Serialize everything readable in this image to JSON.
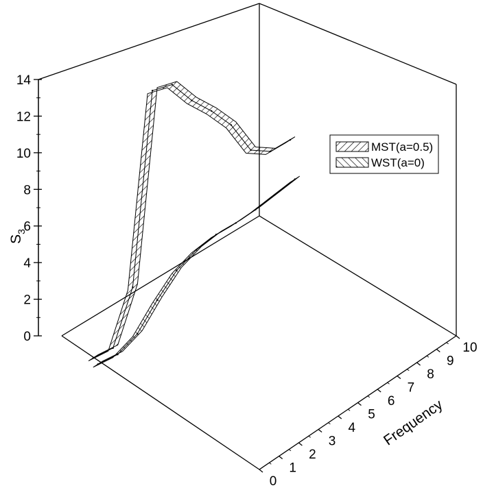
{
  "chart_data": {
    "type": "area",
    "title": "",
    "zlabel": "S",
    "zlabel_subscript": "3",
    "xlabel": "Frequency",
    "z_ticks": [
      "0",
      "2",
      "4",
      "6",
      "8",
      "10",
      "12",
      "14"
    ],
    "x_ticks": [
      "0",
      "1",
      "2",
      "3",
      "4",
      "5",
      "6",
      "7",
      "8",
      "9",
      "10"
    ],
    "zlim": [
      0,
      14
    ],
    "xlim": [
      0,
      10
    ],
    "legend_position": "top-right",
    "series": [
      {
        "name": "MST(a=0.5)",
        "hatch": "forward",
        "x": [
          0,
          1,
          2,
          3,
          4,
          5,
          6,
          7,
          8,
          9,
          10
        ],
        "values": [
          0.6,
          0.4,
          3.0,
          13.0,
          12.6,
          11.0,
          9.7,
          8.2,
          6.1,
          5.3,
          5.2
        ]
      },
      {
        "name": "WST(a=0)",
        "hatch": "back",
        "x": [
          0,
          1,
          2,
          3,
          4,
          5,
          6,
          7,
          8,
          9,
          10
        ],
        "values": [
          0.4,
          0.2,
          0.6,
          1.7,
          2.6,
          3.0,
          3.1,
          3.0,
          3.0,
          3.1,
          3.2
        ]
      }
    ]
  }
}
